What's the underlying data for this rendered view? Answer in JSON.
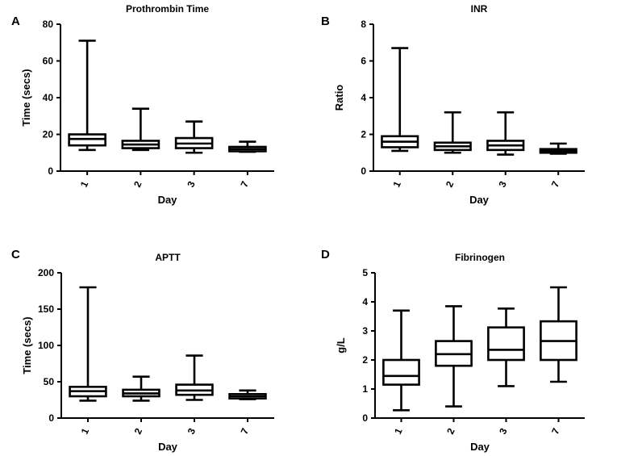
{
  "chart_data": [
    {
      "panel": "A",
      "type": "boxplot",
      "title": "Prothrombin  Time",
      "xlabel": "Day",
      "ylabel": "Time (secs)",
      "ylim": [
        0,
        80
      ],
      "yticks": [
        0,
        20,
        40,
        60,
        80
      ],
      "categories": [
        "1",
        "2",
        "3",
        "7"
      ],
      "boxes": [
        {
          "min": 11.5,
          "q1": 14,
          "median": 17.5,
          "q3": 20,
          "max": 71
        },
        {
          "min": 11.5,
          "q1": 12.5,
          "median": 14.5,
          "q3": 16.5,
          "max": 34
        },
        {
          "min": 10,
          "q1": 12.5,
          "median": 15,
          "q3": 18,
          "max": 27
        },
        {
          "min": 10.5,
          "q1": 10.8,
          "median": 12,
          "q3": 13.2,
          "max": 16
        }
      ]
    },
    {
      "panel": "B",
      "type": "boxplot",
      "title": "INR",
      "xlabel": "Day",
      "ylabel": "Ratio",
      "ylim": [
        0,
        8
      ],
      "yticks": [
        0,
        2,
        4,
        6,
        8
      ],
      "categories": [
        "1",
        "2",
        "3",
        "7"
      ],
      "boxes": [
        {
          "min": 1.1,
          "q1": 1.3,
          "median": 1.6,
          "q3": 1.9,
          "max": 6.7
        },
        {
          "min": 1.0,
          "q1": 1.15,
          "median": 1.35,
          "q3": 1.55,
          "max": 3.2
        },
        {
          "min": 0.9,
          "q1": 1.15,
          "median": 1.4,
          "q3": 1.65,
          "max": 3.2
        },
        {
          "min": 0.95,
          "q1": 1.0,
          "median": 1.1,
          "q3": 1.2,
          "max": 1.5
        }
      ]
    },
    {
      "panel": "C",
      "type": "boxplot",
      "title": "APTT",
      "xlabel": "Day",
      "ylabel": "Time (secs)",
      "ylim": [
        0,
        200
      ],
      "yticks": [
        0,
        50,
        100,
        150,
        200
      ],
      "categories": [
        "1",
        "2",
        "3",
        "7"
      ],
      "boxes": [
        {
          "min": 24,
          "q1": 30,
          "median": 37,
          "q3": 43,
          "max": 180
        },
        {
          "min": 24,
          "q1": 30,
          "median": 34,
          "q3": 39,
          "max": 57
        },
        {
          "min": 25,
          "q1": 32,
          "median": 38,
          "q3": 46,
          "max": 86
        },
        {
          "min": 26,
          "q1": 27,
          "median": 30,
          "q3": 33,
          "max": 38
        }
      ]
    },
    {
      "panel": "D",
      "type": "boxplot",
      "title": "Fibrinogen",
      "xlabel": "Day",
      "ylabel": "g/L",
      "ylim": [
        0,
        5
      ],
      "yticks": [
        0,
        1,
        2,
        3,
        4,
        5
      ],
      "categories": [
        "1",
        "2",
        "3",
        "7"
      ],
      "boxes": [
        {
          "min": 0.27,
          "q1": 1.15,
          "median": 1.45,
          "q3": 2.0,
          "max": 3.7
        },
        {
          "min": 0.4,
          "q1": 1.8,
          "median": 2.2,
          "q3": 2.65,
          "max": 3.85
        },
        {
          "min": 1.1,
          "q1": 2.0,
          "median": 2.35,
          "q3": 3.12,
          "max": 3.77
        },
        {
          "min": 1.25,
          "q1": 2.0,
          "median": 2.65,
          "q3": 3.33,
          "max": 4.5
        }
      ]
    }
  ]
}
